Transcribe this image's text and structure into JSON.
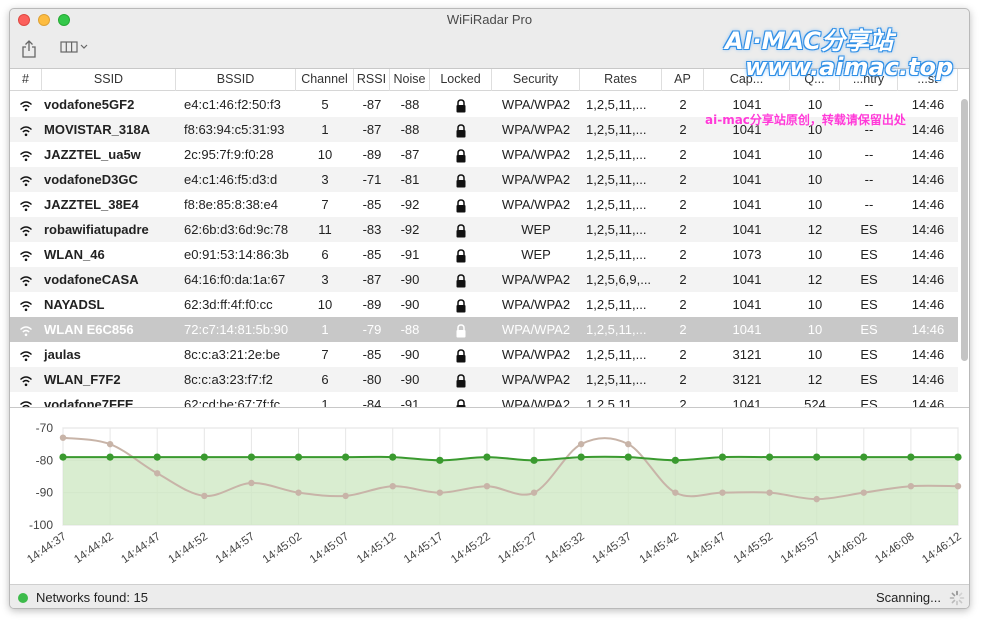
{
  "window": {
    "title": "WiFiRadar Pro"
  },
  "watermark": {
    "line1": "AI·MAC分享站",
    "line2": "www.aimac.top",
    "sub": "ai-mac分享站原创，转载请保留出处"
  },
  "table": {
    "columns": [
      "#",
      "SSID",
      "BSSID",
      "Channel",
      "RSSI",
      "Noise",
      "Locked",
      "Security",
      "Rates",
      "AP",
      "Cap...",
      "Q...",
      "...ntry",
      "...st"
    ],
    "rows": [
      {
        "ssid": "vodafone5GF2",
        "bssid": "e4:c1:46:f2:50:f3",
        "channel": "5",
        "rssi": "-87",
        "noise": "-88",
        "security": "WPA/WPA2",
        "rates": "1,2,5,11,...",
        "ap": "2",
        "cap": "1041",
        "q": "10",
        "country": "--",
        "last": "14:46"
      },
      {
        "ssid": "MOVISTAR_318A",
        "bssid": "f8:63:94:c5:31:93",
        "channel": "1",
        "rssi": "-87",
        "noise": "-88",
        "security": "WPA/WPA2",
        "rates": "1,2,5,11,...",
        "ap": "2",
        "cap": "1041",
        "q": "10",
        "country": "--",
        "last": "14:46"
      },
      {
        "ssid": "JAZZTEL_ua5w",
        "bssid": "2c:95:7f:9:f0:28",
        "channel": "10",
        "rssi": "-89",
        "noise": "-87",
        "security": "WPA/WPA2",
        "rates": "1,2,5,11,...",
        "ap": "2",
        "cap": "1041",
        "q": "10",
        "country": "--",
        "last": "14:46"
      },
      {
        "ssid": "vodafoneD3GC",
        "bssid": "e4:c1:46:f5:d3:d",
        "channel": "3",
        "rssi": "-71",
        "noise": "-81",
        "security": "WPA/WPA2",
        "rates": "1,2,5,11,...",
        "ap": "2",
        "cap": "1041",
        "q": "10",
        "country": "--",
        "last": "14:46"
      },
      {
        "ssid": "JAZZTEL_38E4",
        "bssid": "f8:8e:85:8:38:e4",
        "channel": "7",
        "rssi": "-85",
        "noise": "-92",
        "security": "WPA/WPA2",
        "rates": "1,2,5,11,...",
        "ap": "2",
        "cap": "1041",
        "q": "10",
        "country": "--",
        "last": "14:46"
      },
      {
        "ssid": "robawifiatupadre",
        "bssid": "62:6b:d3:6d:9c:78",
        "channel": "11",
        "rssi": "-83",
        "noise": "-92",
        "security": "WEP",
        "rates": "1,2,5,11,...",
        "ap": "2",
        "cap": "1041",
        "q": "12",
        "country": "ES",
        "last": "14:46"
      },
      {
        "ssid": "WLAN_46",
        "bssid": "e0:91:53:14:86:3b",
        "channel": "6",
        "rssi": "-85",
        "noise": "-91",
        "security": "WEP",
        "rates": "1,2,5,11,...",
        "ap": "2",
        "cap": "1073",
        "q": "10",
        "country": "ES",
        "last": "14:46"
      },
      {
        "ssid": "vodafoneCASA",
        "bssid": "64:16:f0:da:1a:67",
        "channel": "3",
        "rssi": "-87",
        "noise": "-90",
        "security": "WPA/WPA2",
        "rates": "1,2,5,6,9,...",
        "ap": "2",
        "cap": "1041",
        "q": "12",
        "country": "ES",
        "last": "14:46"
      },
      {
        "ssid": "NAYADSL",
        "bssid": "62:3d:ff:4f:f0:cc",
        "channel": "10",
        "rssi": "-89",
        "noise": "-90",
        "security": "WPA/WPA2",
        "rates": "1,2,5,11,...",
        "ap": "2",
        "cap": "1041",
        "q": "10",
        "country": "ES",
        "last": "14:46"
      },
      {
        "ssid": "WLAN E6C856",
        "bssid": "72:c7:14:81:5b:90",
        "channel": "1",
        "rssi": "-79",
        "noise": "-88",
        "security": "WPA/WPA2",
        "rates": "1,2,5,11,...",
        "ap": "2",
        "cap": "1041",
        "q": "10",
        "country": "ES",
        "last": "14:46",
        "selected": true
      },
      {
        "ssid": "jaulas",
        "bssid": "8c:c:a3:21:2e:be",
        "channel": "7",
        "rssi": "-85",
        "noise": "-90",
        "security": "WPA/WPA2",
        "rates": "1,2,5,11,...",
        "ap": "2",
        "cap": "3121",
        "q": "10",
        "country": "ES",
        "last": "14:46"
      },
      {
        "ssid": "WLAN_F7F2",
        "bssid": "8c:c:a3:23:f7:f2",
        "channel": "6",
        "rssi": "-80",
        "noise": "-90",
        "security": "WPA/WPA2",
        "rates": "1,2,5,11,...",
        "ap": "2",
        "cap": "3121",
        "q": "12",
        "country": "ES",
        "last": "14:46"
      },
      {
        "ssid": "vodafone7FFE",
        "bssid": "62:cd:be:67:7f:fc",
        "channel": "1",
        "rssi": "-84",
        "noise": "-91",
        "security": "WPA/WPA2",
        "rates": "1,2,5,11,...",
        "ap": "2",
        "cap": "1041",
        "q": "524",
        "country": "ES",
        "last": "14:46"
      }
    ]
  },
  "chart_data": {
    "type": "area",
    "ylim": [
      -100,
      -70
    ],
    "yticks": [
      -70,
      -80,
      -90,
      -100
    ],
    "x": [
      "14:44:37",
      "14:44:42",
      "14:44:47",
      "14:44:52",
      "14:44:57",
      "14:45:02",
      "14:45:07",
      "14:45:12",
      "14:45:17",
      "14:45:22",
      "14:45:27",
      "14:45:32",
      "14:45:37",
      "14:45:42",
      "14:45:47",
      "14:45:52",
      "14:45:57",
      "14:46:02",
      "14:46:08",
      "14:46:12"
    ],
    "grid": true,
    "series": [
      {
        "values": [
          -79,
          -79,
          -79,
          -79,
          -79,
          -79,
          -79,
          -79,
          -80,
          -79,
          -80,
          -79,
          -79,
          -80,
          -79,
          -79,
          -79,
          -79,
          -79,
          -79
        ],
        "color": "#3a9a2f"
      },
      {
        "values": [
          -73,
          -75,
          -84,
          -91,
          -87,
          -90,
          -91,
          -88,
          -90,
          -88,
          -90,
          -75,
          -75,
          -90,
          -90,
          -90,
          -92,
          -90,
          -88,
          -88
        ],
        "color": "#c8b4a8"
      }
    ]
  },
  "status": {
    "networks_found": "Networks found:  15",
    "scanning": "Scanning..."
  },
  "icons": {
    "share": "share-icon",
    "view": "columns-icon",
    "wifi": "wifi-icon",
    "lock": "lock-icon",
    "spinner": "spinner-icon"
  }
}
